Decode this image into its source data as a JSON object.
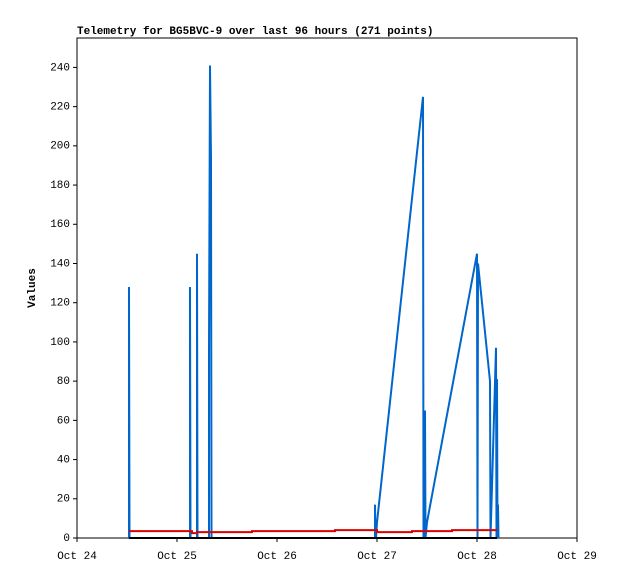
{
  "chart_data": {
    "type": "line",
    "title": "Telemetry for BG5BVC-9 over last 96 hours (271 points)",
    "y_label": "Values",
    "xlim": [
      24,
      29
    ],
    "xticks": [
      {
        "value": 24,
        "label": "Oct 24"
      },
      {
        "value": 25,
        "label": "Oct 25"
      },
      {
        "value": 26,
        "label": "Oct 26"
      },
      {
        "value": 27,
        "label": "Oct 27"
      },
      {
        "value": 28,
        "label": "Oct 28"
      },
      {
        "value": 29,
        "label": "Oct 29"
      }
    ],
    "ylim": [
      0,
      255
    ],
    "yticks": [
      0,
      20,
      40,
      60,
      80,
      100,
      120,
      140,
      160,
      180,
      200,
      220,
      240
    ],
    "grid": false,
    "series": [
      {
        "color": "#0066cc",
        "x": [
          24.52,
          24.52,
          24.525,
          25.13,
          25.13,
          25.135,
          25.2,
          25.2,
          25.205,
          25.32,
          25.32,
          25.33,
          25.34,
          25.345,
          26.98,
          26.98,
          26.985,
          26.99,
          27.0,
          27.46,
          27.465,
          27.475,
          27.48,
          27.485,
          27.5,
          28.0,
          28.005,
          28.01,
          28.13,
          28.135,
          28.19,
          28.195,
          28.2,
          28.205,
          28.21,
          28.215
        ],
        "values": [
          0,
          128,
          0,
          0,
          128,
          0,
          0,
          145,
          0,
          0,
          96,
          241,
          193,
          0,
          0,
          17,
          0,
          0,
          8,
          225,
          0,
          0,
          65,
          0,
          8,
          145,
          0,
          140,
          80,
          0,
          97,
          0,
          81,
          0,
          17,
          0
        ]
      },
      {
        "color": "#dd0000",
        "x": [
          24.52,
          25.15,
          25.15,
          25.2,
          25.2,
          25.75,
          25.75,
          26.58,
          26.58,
          27.0,
          27.0,
          27.35,
          27.35,
          27.75,
          27.75,
          28.2
        ],
        "values": [
          3.5,
          3.5,
          2.5,
          2.5,
          3,
          3,
          3.5,
          3.5,
          4,
          4,
          3,
          3,
          3.5,
          3.5,
          4,
          4
        ]
      },
      {
        "color": "#000000",
        "x": [
          24.52,
          28.2
        ],
        "values": [
          0,
          0
        ]
      }
    ]
  }
}
